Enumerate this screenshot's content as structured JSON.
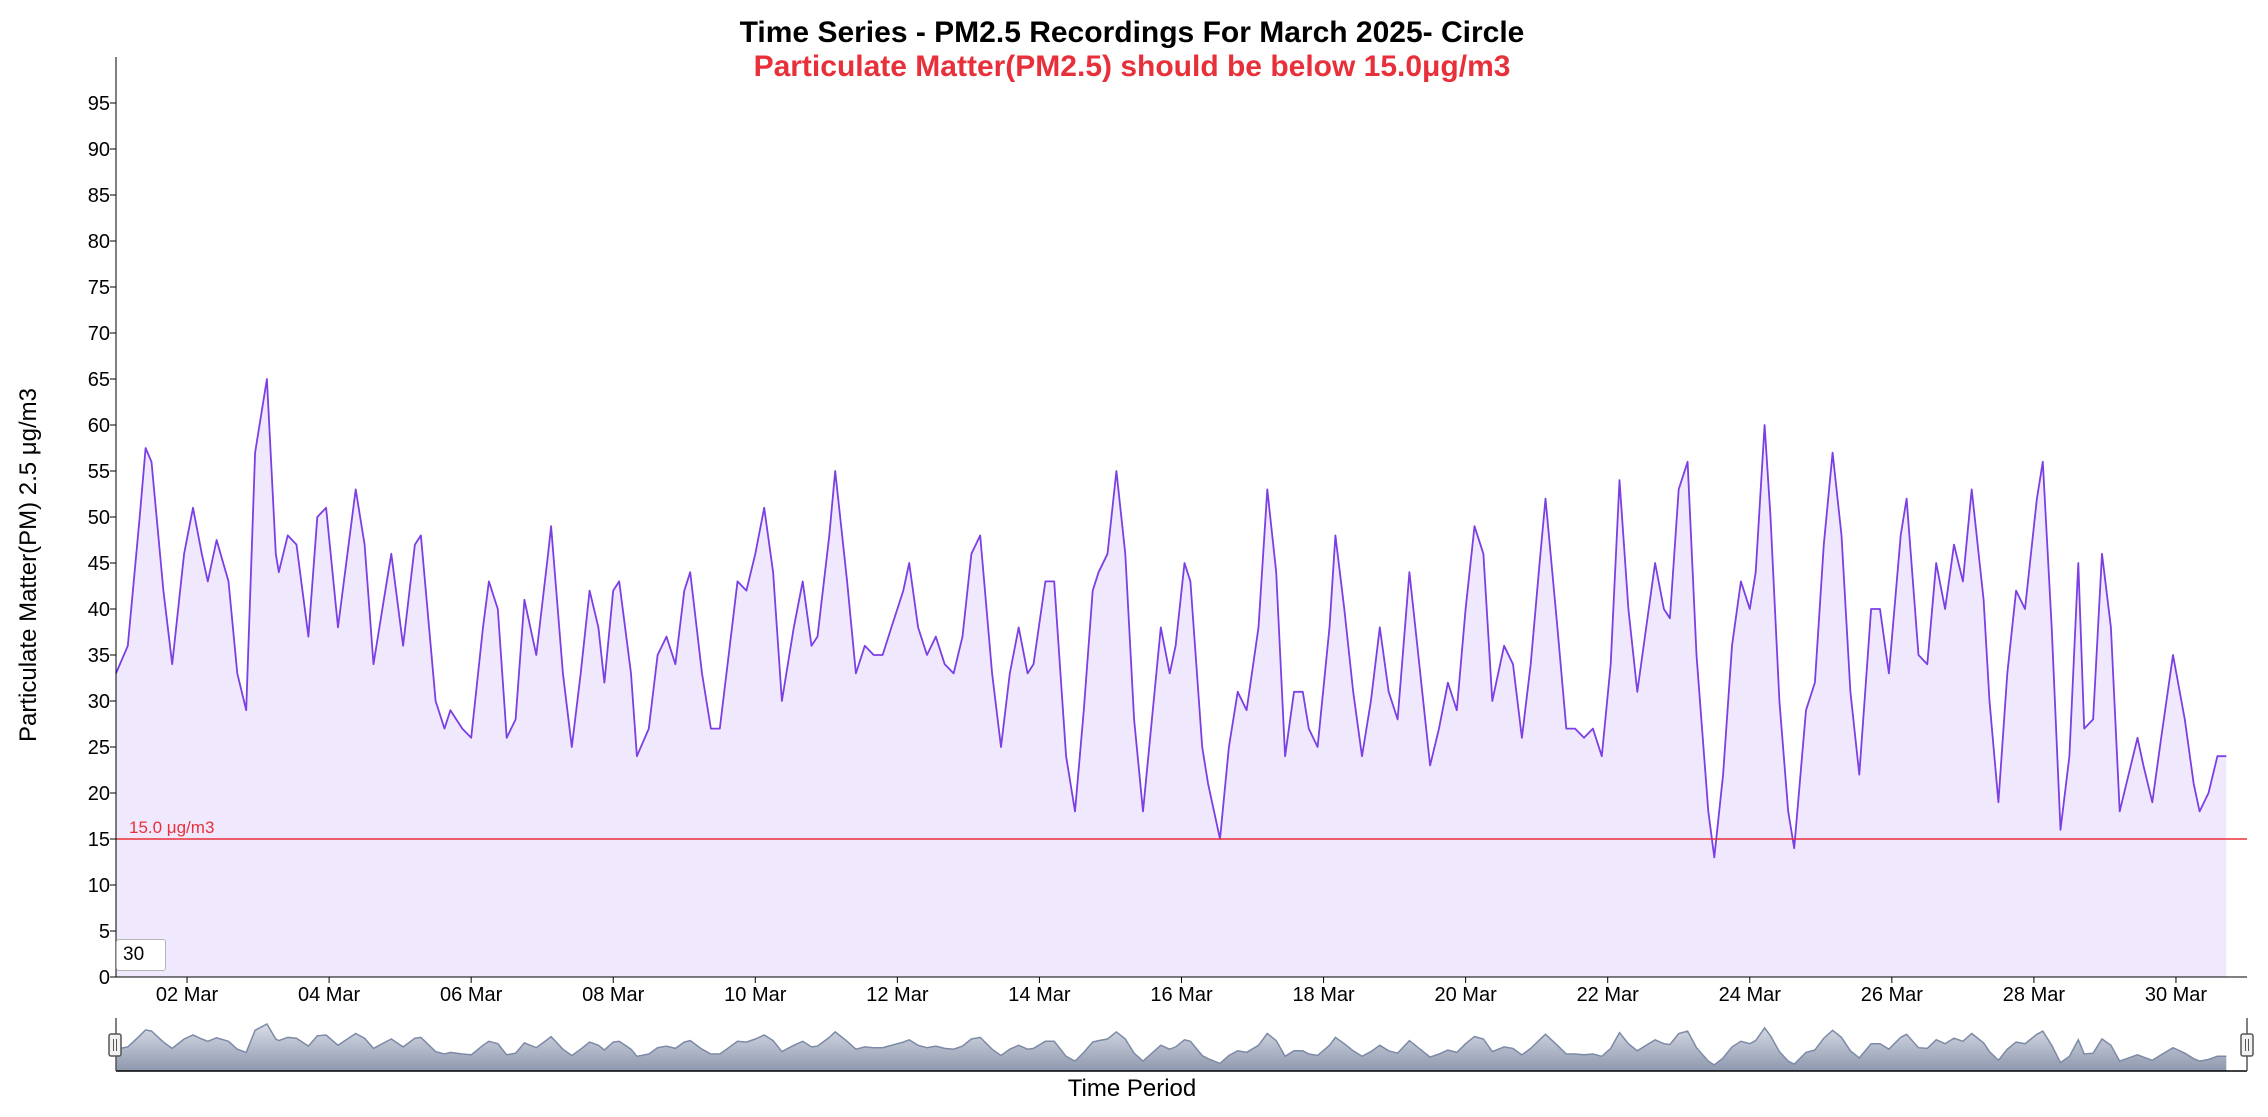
{
  "chart_data": {
    "type": "area",
    "title": "Time Series - PM2.5 Recordings For March 2025- Circle",
    "subtitle": "Particulate Matter(PM2.5) should be below 15.0μg/m3",
    "xlabel": "Time Period",
    "ylabel": "Particulate Matter(PM) 2.5 μg/m3",
    "x_range": [
      "2025-03-01",
      "2025-03-31"
    ],
    "ylim": [
      0,
      100
    ],
    "y_ticks": [
      0,
      5,
      10,
      15,
      20,
      25,
      30,
      35,
      40,
      45,
      50,
      55,
      60,
      65,
      70,
      75,
      80,
      85,
      90,
      95
    ],
    "x_ticks": [
      {
        "date": "2025-03-02",
        "label": "02 Mar"
      },
      {
        "date": "2025-03-04",
        "label": "04 Mar"
      },
      {
        "date": "2025-03-06",
        "label": "06 Mar"
      },
      {
        "date": "2025-03-08",
        "label": "08 Mar"
      },
      {
        "date": "2025-03-10",
        "label": "10 Mar"
      },
      {
        "date": "2025-03-12",
        "label": "12 Mar"
      },
      {
        "date": "2025-03-14",
        "label": "14 Mar"
      },
      {
        "date": "2025-03-16",
        "label": "16 Mar"
      },
      {
        "date": "2025-03-18",
        "label": "18 Mar"
      },
      {
        "date": "2025-03-20",
        "label": "20 Mar"
      },
      {
        "date": "2025-03-22",
        "label": "22 Mar"
      },
      {
        "date": "2025-03-24",
        "label": "24 Mar"
      },
      {
        "date": "2025-03-26",
        "label": "26 Mar"
      },
      {
        "date": "2025-03-28",
        "label": "28 Mar"
      },
      {
        "date": "2025-03-30",
        "label": "30 Mar"
      }
    ],
    "grid": false,
    "legend": "none",
    "threshold": {
      "value": 15.0,
      "label": "15.0 μg/m3",
      "color": "#e8303a"
    },
    "series": [
      {
        "color": "#7b3fe4",
        "fill": "#f0e8fd",
        "points": [
          [
            "2025-03-01 00:00",
            33
          ],
          [
            "2025-03-01 04:00",
            36
          ],
          [
            "2025-03-01 08:00",
            50
          ],
          [
            "2025-03-01 10:00",
            57.5
          ],
          [
            "2025-03-01 12:00",
            56
          ],
          [
            "2025-03-01 16:00",
            42
          ],
          [
            "2025-03-01 19:00",
            34
          ],
          [
            "2025-03-01 23:00",
            46
          ],
          [
            "2025-03-02 02:00",
            51
          ],
          [
            "2025-03-02 05:00",
            46
          ],
          [
            "2025-03-02 07:00",
            43
          ],
          [
            "2025-03-02 10:00",
            47.5
          ],
          [
            "2025-03-02 14:00",
            43
          ],
          [
            "2025-03-02 17:00",
            33
          ],
          [
            "2025-03-02 20:00",
            29
          ],
          [
            "2025-03-02 23:00",
            57
          ],
          [
            "2025-03-03 03:00",
            65
          ],
          [
            "2025-03-03 06:00",
            46
          ],
          [
            "2025-03-03 07:00",
            44
          ],
          [
            "2025-03-03 10:00",
            48
          ],
          [
            "2025-03-03 13:00",
            47
          ],
          [
            "2025-03-03 17:00",
            37
          ],
          [
            "2025-03-03 20:00",
            50
          ],
          [
            "2025-03-03 23:00",
            51
          ],
          [
            "2025-03-04 03:00",
            38
          ],
          [
            "2025-03-04 07:00",
            48
          ],
          [
            "2025-03-04 09:00",
            53
          ],
          [
            "2025-03-04 12:00",
            47
          ],
          [
            "2025-03-04 15:00",
            34
          ],
          [
            "2025-03-04 19:00",
            42
          ],
          [
            "2025-03-04 21:00",
            46
          ],
          [
            "2025-03-05 01:00",
            36
          ],
          [
            "2025-03-05 05:00",
            47
          ],
          [
            "2025-03-05 07:00",
            48
          ],
          [
            "2025-03-05 12:00",
            30
          ],
          [
            "2025-03-05 15:00",
            27
          ],
          [
            "2025-03-05 17:00",
            29
          ],
          [
            "2025-03-05 21:00",
            27
          ],
          [
            "2025-03-06 00:00",
            26
          ],
          [
            "2025-03-06 04:00",
            38
          ],
          [
            "2025-03-06 06:00",
            43
          ],
          [
            "2025-03-06 09:00",
            40
          ],
          [
            "2025-03-06 12:00",
            26
          ],
          [
            "2025-03-06 15:00",
            28
          ],
          [
            "2025-03-06 18:00",
            41
          ],
          [
            "2025-03-06 22:00",
            35
          ],
          [
            "2025-03-07 02:00",
            46
          ],
          [
            "2025-03-07 03:00",
            49
          ],
          [
            "2025-03-07 07:00",
            33
          ],
          [
            "2025-03-07 10:00",
            25
          ],
          [
            "2025-03-07 13:00",
            33
          ],
          [
            "2025-03-07 16:00",
            42
          ],
          [
            "2025-03-07 19:00",
            38
          ],
          [
            "2025-03-07 21:00",
            32
          ],
          [
            "2025-03-08 00:00",
            42
          ],
          [
            "2025-03-08 02:00",
            43
          ],
          [
            "2025-03-08 06:00",
            33
          ],
          [
            "2025-03-08 08:00",
            24
          ],
          [
            "2025-03-08 12:00",
            27
          ],
          [
            "2025-03-08 15:00",
            35
          ],
          [
            "2025-03-08 18:00",
            37
          ],
          [
            "2025-03-08 21:00",
            34
          ],
          [
            "2025-03-09 00:00",
            42
          ],
          [
            "2025-03-09 02:00",
            44
          ],
          [
            "2025-03-09 06:00",
            33
          ],
          [
            "2025-03-09 09:00",
            27
          ],
          [
            "2025-03-09 12:00",
            27
          ],
          [
            "2025-03-09 15:00",
            35
          ],
          [
            "2025-03-09 18:00",
            43
          ],
          [
            "2025-03-09 21:00",
            42
          ],
          [
            "2025-03-10 00:00",
            46
          ],
          [
            "2025-03-10 03:00",
            51
          ],
          [
            "2025-03-10 06:00",
            44
          ],
          [
            "2025-03-10 09:00",
            30
          ],
          [
            "2025-03-10 13:00",
            38
          ],
          [
            "2025-03-10 16:00",
            43
          ],
          [
            "2025-03-10 19:00",
            36
          ],
          [
            "2025-03-10 21:00",
            37
          ],
          [
            "2025-03-11 01:00",
            48
          ],
          [
            "2025-03-11 03:00",
            55
          ],
          [
            "2025-03-11 07:00",
            43
          ],
          [
            "2025-03-11 10:00",
            33
          ],
          [
            "2025-03-11 13:00",
            36
          ],
          [
            "2025-03-11 16:00",
            35
          ],
          [
            "2025-03-11 19:00",
            35
          ],
          [
            "2025-03-11 22:00",
            38
          ],
          [
            "2025-03-12 02:00",
            42
          ],
          [
            "2025-03-12 04:00",
            45
          ],
          [
            "2025-03-12 07:00",
            38
          ],
          [
            "2025-03-12 10:00",
            35
          ],
          [
            "2025-03-12 13:00",
            37
          ],
          [
            "2025-03-12 16:00",
            34
          ],
          [
            "2025-03-12 19:00",
            33
          ],
          [
            "2025-03-12 22:00",
            37
          ],
          [
            "2025-03-13 01:00",
            46
          ],
          [
            "2025-03-13 04:00",
            48
          ],
          [
            "2025-03-13 08:00",
            33
          ],
          [
            "2025-03-13 11:00",
            25
          ],
          [
            "2025-03-13 14:00",
            33
          ],
          [
            "2025-03-13 17:00",
            38
          ],
          [
            "2025-03-13 20:00",
            33
          ],
          [
            "2025-03-13 22:00",
            34
          ],
          [
            "2025-03-14 02:00",
            43
          ],
          [
            "2025-03-14 05:00",
            43
          ],
          [
            "2025-03-14 09:00",
            24
          ],
          [
            "2025-03-14 12:00",
            18
          ],
          [
            "2025-03-14 15:00",
            29
          ],
          [
            "2025-03-14 18:00",
            42
          ],
          [
            "2025-03-14 20:00",
            44
          ],
          [
            "2025-03-14 23:00",
            46
          ],
          [
            "2025-03-15 02:00",
            55
          ],
          [
            "2025-03-15 05:00",
            46
          ],
          [
            "2025-03-15 08:00",
            28
          ],
          [
            "2025-03-15 11:00",
            18
          ],
          [
            "2025-03-15 14:00",
            28
          ],
          [
            "2025-03-15 17:00",
            38
          ],
          [
            "2025-03-15 20:00",
            33
          ],
          [
            "2025-03-15 22:00",
            36
          ],
          [
            "2025-03-16 01:00",
            45
          ],
          [
            "2025-03-16 03:00",
            43
          ],
          [
            "2025-03-16 07:00",
            25
          ],
          [
            "2025-03-16 09:00",
            21
          ],
          [
            "2025-03-16 13:00",
            15
          ],
          [
            "2025-03-16 16:00",
            25
          ],
          [
            "2025-03-16 19:00",
            31
          ],
          [
            "2025-03-16 22:00",
            29
          ],
          [
            "2025-03-17 02:00",
            38
          ],
          [
            "2025-03-17 05:00",
            53
          ],
          [
            "2025-03-17 08:00",
            44
          ],
          [
            "2025-03-17 11:00",
            24
          ],
          [
            "2025-03-17 14:00",
            31
          ],
          [
            "2025-03-17 17:00",
            31
          ],
          [
            "2025-03-17 19:00",
            27
          ],
          [
            "2025-03-17 22:00",
            25
          ],
          [
            "2025-03-18 02:00",
            38
          ],
          [
            "2025-03-18 04:00",
            48
          ],
          [
            "2025-03-18 07:00",
            40
          ],
          [
            "2025-03-18 10:00",
            31
          ],
          [
            "2025-03-18 13:00",
            24
          ],
          [
            "2025-03-18 16:00",
            30
          ],
          [
            "2025-03-18 19:00",
            38
          ],
          [
            "2025-03-18 22:00",
            31
          ],
          [
            "2025-03-19 01:00",
            28
          ],
          [
            "2025-03-19 03:00",
            36
          ],
          [
            "2025-03-19 05:00",
            44
          ],
          [
            "2025-03-19 08:00",
            35
          ],
          [
            "2025-03-19 12:00",
            23
          ],
          [
            "2025-03-19 15:00",
            27
          ],
          [
            "2025-03-19 18:00",
            32
          ],
          [
            "2025-03-19 21:00",
            29
          ],
          [
            "2025-03-20 00:00",
            40
          ],
          [
            "2025-03-20 03:00",
            49
          ],
          [
            "2025-03-20 06:00",
            46
          ],
          [
            "2025-03-20 09:00",
            30
          ],
          [
            "2025-03-20 13:00",
            36
          ],
          [
            "2025-03-20 16:00",
            34
          ],
          [
            "2025-03-20 19:00",
            26
          ],
          [
            "2025-03-20 22:00",
            34
          ],
          [
            "2025-03-21 01:00",
            45
          ],
          [
            "2025-03-21 03:00",
            52
          ],
          [
            "2025-03-21 07:00",
            38
          ],
          [
            "2025-03-21 10:00",
            27
          ],
          [
            "2025-03-21 13:00",
            27
          ],
          [
            "2025-03-21 16:00",
            26
          ],
          [
            "2025-03-21 19:00",
            27
          ],
          [
            "2025-03-21 22:00",
            24
          ],
          [
            "2025-03-22 01:00",
            34
          ],
          [
            "2025-03-22 04:00",
            54
          ],
          [
            "2025-03-22 07:00",
            40
          ],
          [
            "2025-03-22 10:00",
            31
          ],
          [
            "2025-03-22 13:00",
            38
          ],
          [
            "2025-03-22 16:00",
            45
          ],
          [
            "2025-03-22 19:00",
            40
          ],
          [
            "2025-03-22 21:00",
            39
          ],
          [
            "2025-03-23 00:00",
            53
          ],
          [
            "2025-03-23 03:00",
            56
          ],
          [
            "2025-03-23 06:00",
            35
          ],
          [
            "2025-03-23 10:00",
            18
          ],
          [
            "2025-03-23 12:00",
            13
          ],
          [
            "2025-03-23 15:00",
            22
          ],
          [
            "2025-03-23 18:00",
            36
          ],
          [
            "2025-03-23 21:00",
            43
          ],
          [
            "2025-03-24 00:00",
            40
          ],
          [
            "2025-03-24 02:00",
            44
          ],
          [
            "2025-03-24 05:00",
            60
          ],
          [
            "2025-03-24 07:00",
            50
          ],
          [
            "2025-03-24 10:00",
            30
          ],
          [
            "2025-03-24 13:00",
            18
          ],
          [
            "2025-03-24 15:00",
            14
          ],
          [
            "2025-03-24 19:00",
            29
          ],
          [
            "2025-03-24 22:00",
            32
          ],
          [
            "2025-03-25 01:00",
            47
          ],
          [
            "2025-03-25 04:00",
            57
          ],
          [
            "2025-03-25 07:00",
            48
          ],
          [
            "2025-03-25 10:00",
            31
          ],
          [
            "2025-03-25 13:00",
            22
          ],
          [
            "2025-03-25 17:00",
            40
          ],
          [
            "2025-03-25 20:00",
            40
          ],
          [
            "2025-03-25 23:00",
            33
          ],
          [
            "2025-03-26 03:00",
            48
          ],
          [
            "2025-03-26 05:00",
            52
          ],
          [
            "2025-03-26 09:00",
            35
          ],
          [
            "2025-03-26 12:00",
            34
          ],
          [
            "2025-03-26 15:00",
            45
          ],
          [
            "2025-03-26 18:00",
            40
          ],
          [
            "2025-03-26 21:00",
            47
          ],
          [
            "2025-03-27 00:00",
            43
          ],
          [
            "2025-03-27 03:00",
            53
          ],
          [
            "2025-03-27 07:00",
            41
          ],
          [
            "2025-03-27 09:00",
            30
          ],
          [
            "2025-03-27 12:00",
            19
          ],
          [
            "2025-03-27 15:00",
            33
          ],
          [
            "2025-03-27 18:00",
            42
          ],
          [
            "2025-03-27 21:00",
            40
          ],
          [
            "2025-03-28 01:00",
            52
          ],
          [
            "2025-03-28 03:00",
            56
          ],
          [
            "2025-03-28 06:00",
            38
          ],
          [
            "2025-03-28 09:00",
            16
          ],
          [
            "2025-03-28 12:00",
            24
          ],
          [
            "2025-03-28 15:00",
            45
          ],
          [
            "2025-03-28 17:00",
            27
          ],
          [
            "2025-03-28 20:00",
            28
          ],
          [
            "2025-03-28 23:00",
            46
          ],
          [
            "2025-03-29 02:00",
            38
          ],
          [
            "2025-03-29 05:00",
            18
          ],
          [
            "2025-03-29 08:00",
            22
          ],
          [
            "2025-03-29 11:00",
            26
          ],
          [
            "2025-03-29 13:00",
            23
          ],
          [
            "2025-03-29 16:00",
            19
          ],
          [
            "2025-03-29 19:00",
            26
          ],
          [
            "2025-03-29 23:00",
            35
          ],
          [
            "2025-03-30 03:00",
            28
          ],
          [
            "2025-03-30 06:00",
            21
          ],
          [
            "2025-03-30 08:00",
            18
          ],
          [
            "2025-03-30 11:00",
            20
          ],
          [
            "2025-03-30 14:00",
            24
          ],
          [
            "2025-03-30 17:00",
            24
          ]
        ]
      }
    ]
  },
  "zoom_input": {
    "value": "30"
  }
}
